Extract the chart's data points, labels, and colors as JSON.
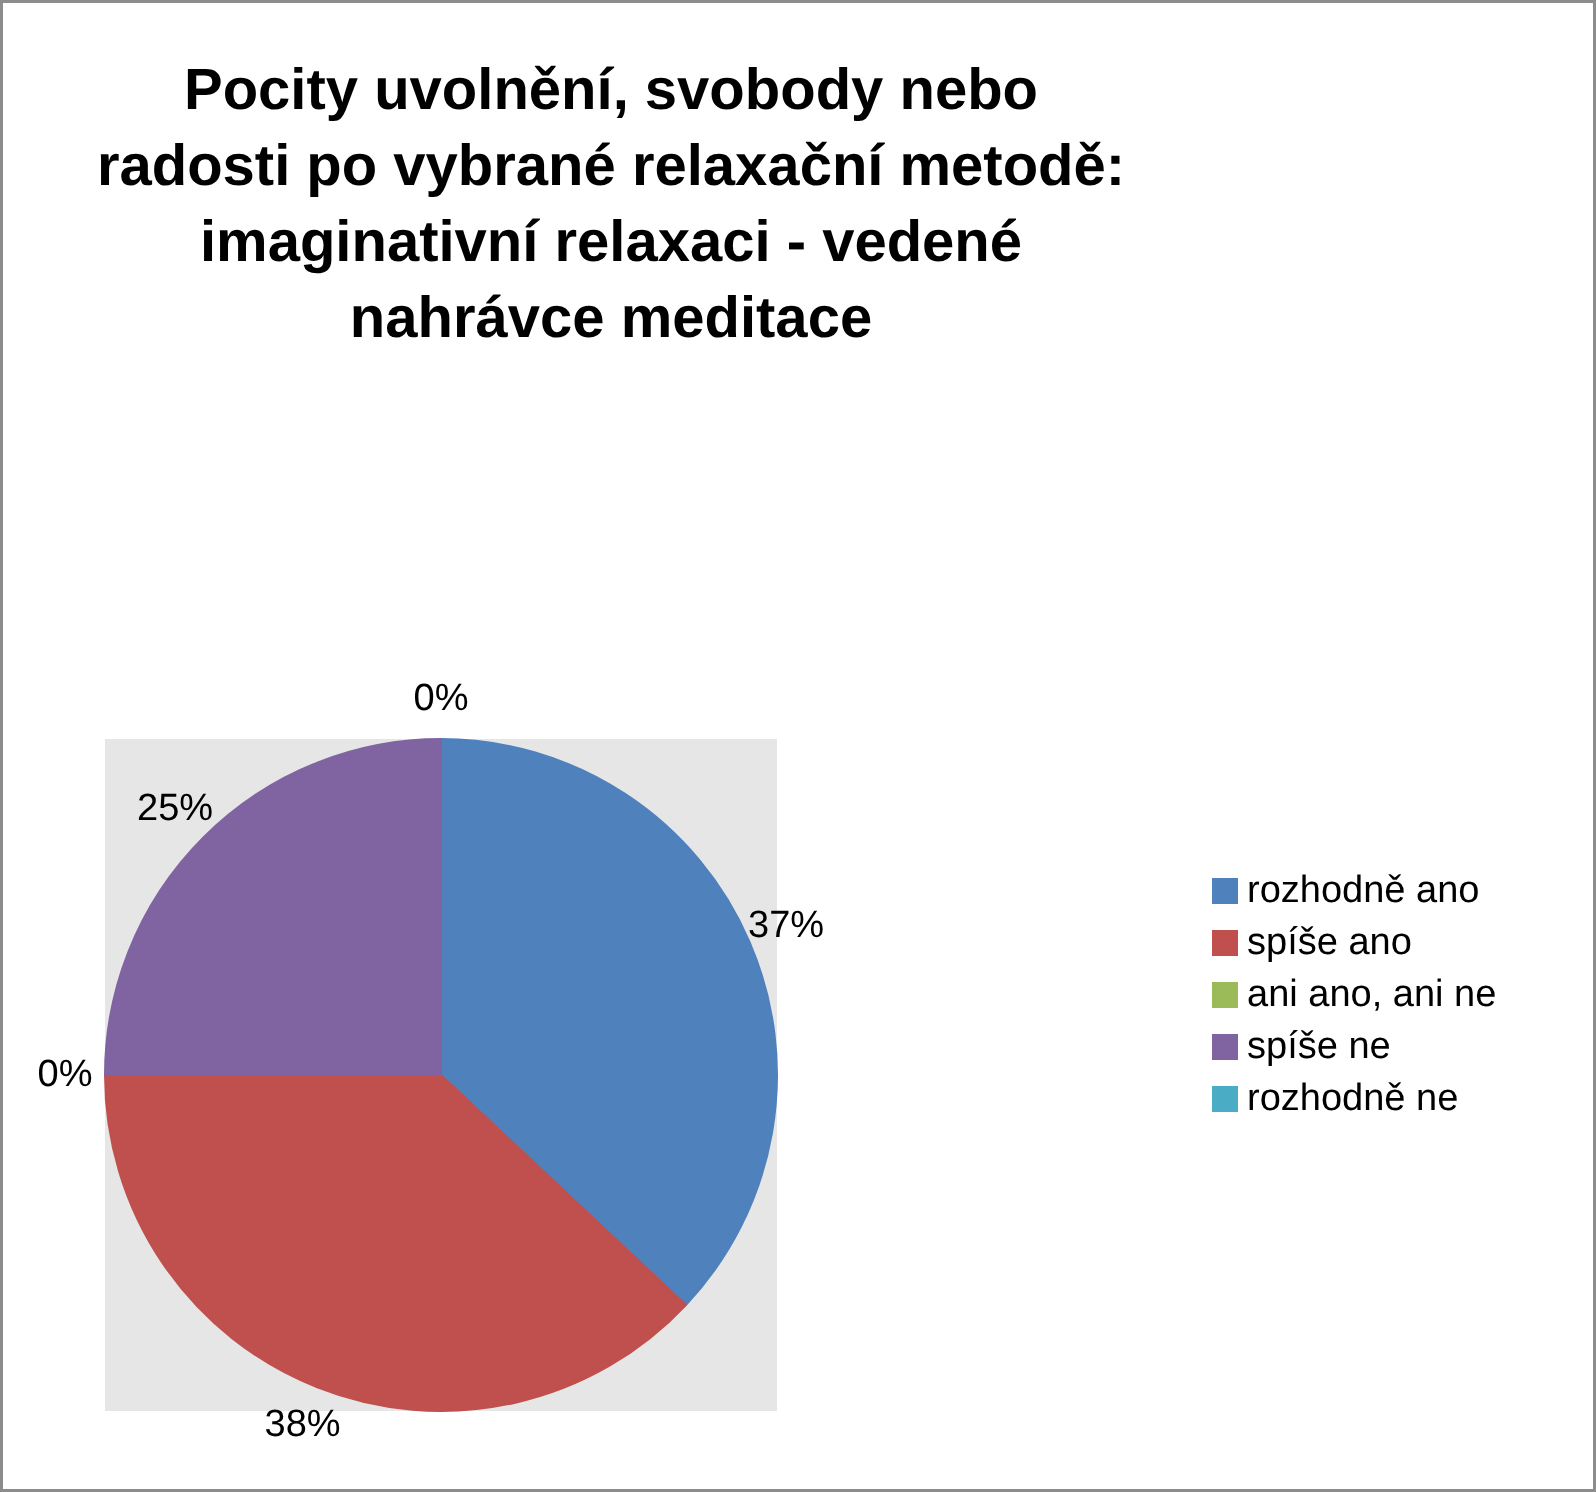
{
  "chart_data": {
    "type": "pie",
    "title": "Pocity uvolnění, svobody nebo radosti po vybrané relaxační metodě: imaginativní relaxaci - vedené nahrávce meditace",
    "categories": [
      "rozhodně ano",
      "spíše ano",
      "ani ano, ani ne",
      "spíše ne",
      "rozhodně ne"
    ],
    "values": [
      37,
      38,
      0,
      25,
      0
    ],
    "colors": [
      "#4f81bd",
      "#c0504d",
      "#9bbb59",
      "#8064a2",
      "#4bacc6"
    ],
    "value_labels": [
      "37%",
      "38%",
      "0%",
      "25%",
      "0%"
    ],
    "legend": "right"
  }
}
